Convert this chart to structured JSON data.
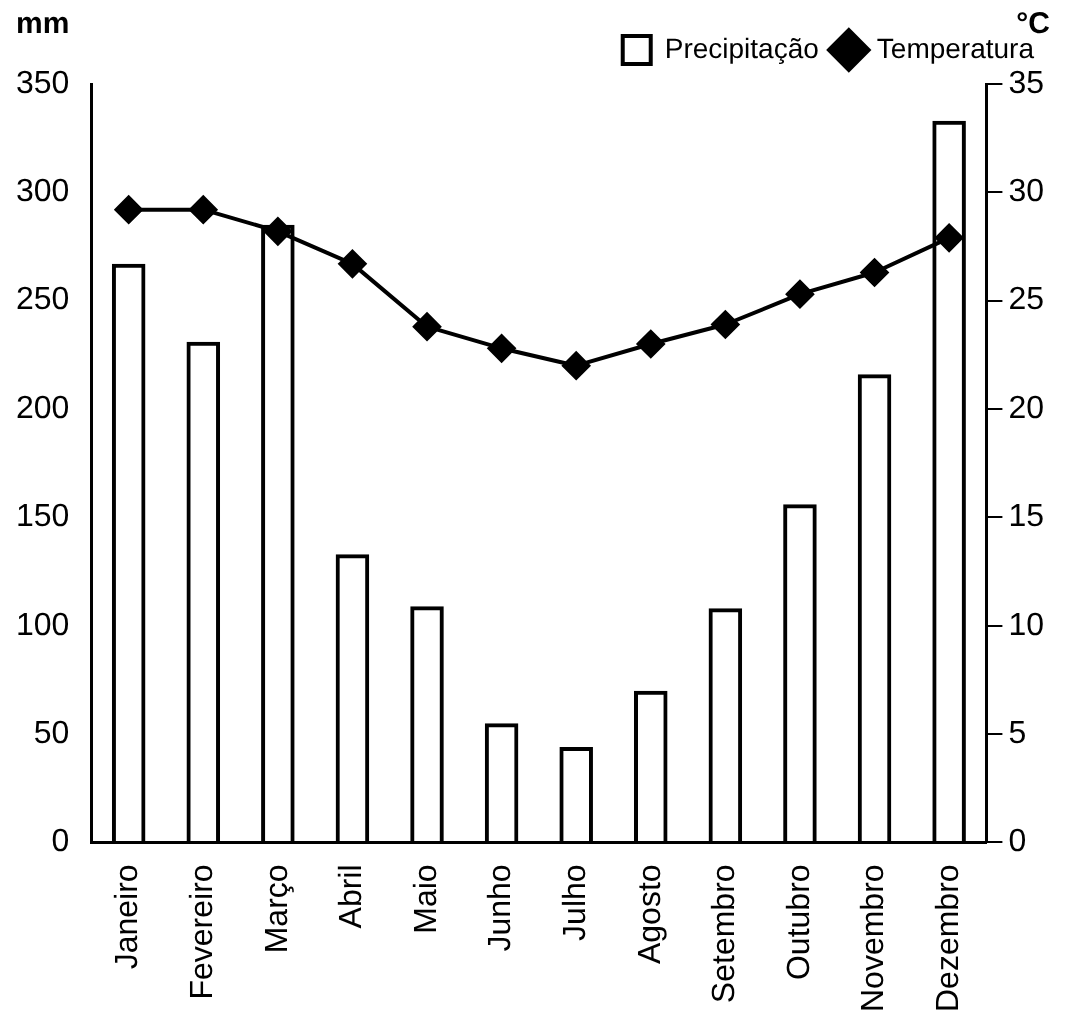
{
  "chart_data": {
    "type": "bar",
    "ylabel": "mm",
    "y2label": "°C",
    "categories": [
      "Janeiro",
      "Fevereiro",
      "Março",
      "Abril",
      "Maio",
      "Junho",
      "Julho",
      "Agosto",
      "Setembro",
      "Outubro",
      "Novembro",
      "Dezembro"
    ],
    "series": [
      {
        "name": "Precipitação",
        "color": "#000000",
        "values": [
          267,
          231,
          285,
          133,
          109,
          55,
          44,
          70,
          108,
          156,
          216,
          333
        ]
      },
      {
        "name": "Temperatura",
        "type": "line",
        "color": "#000000",
        "axis": "y2",
        "marker": "diamond",
        "values": [
          29.2,
          29.2,
          28.2,
          26.7,
          23.8,
          22.8,
          22.0,
          23.0,
          23.9,
          25.3,
          26.3,
          27.9
        ]
      }
    ],
    "ylim": [
      0,
      350
    ],
    "yticks": [
      0,
      50,
      100,
      150,
      200,
      250,
      300,
      350
    ],
    "y2lim": [
      0,
      35
    ],
    "y2ticks": [
      0,
      5,
      10,
      15,
      20,
      25,
      30,
      35
    ],
    "grid": false,
    "legend": "top right"
  }
}
